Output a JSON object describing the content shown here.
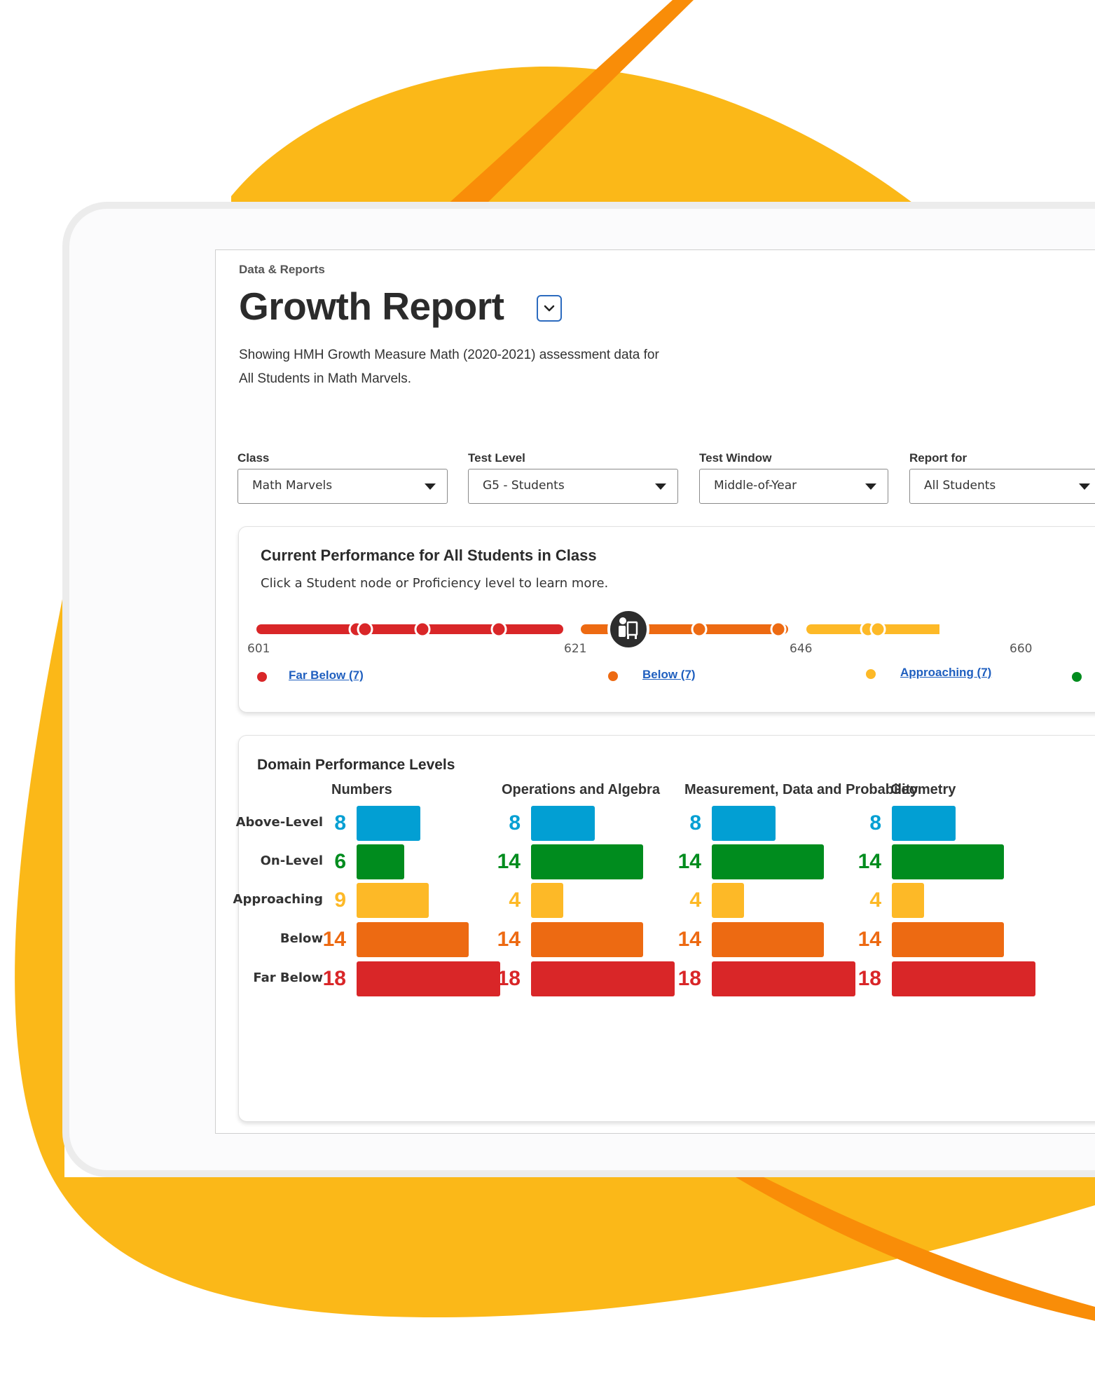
{
  "colors": {
    "background_blob": "#fbb818",
    "accent_stripe": "#f98d08",
    "above_level": "#029fd3",
    "on_level": "#008c1e",
    "approaching": "#fdb927",
    "below": "#ed6a12",
    "far_below": "#d92628",
    "link": "#1f5fbf"
  },
  "header": {
    "breadcrumb": "Data & Reports",
    "title": "Growth Report",
    "title_toggle_icon": "chevron-down-icon",
    "description": "Showing HMH Growth Measure Math (2020-2021) assessment data for All Students in Math Marvels."
  },
  "filters": [
    {
      "label": "Class",
      "value": "Math Marvels"
    },
    {
      "label": "Test Level",
      "value": "G5 - Students"
    },
    {
      "label": "Test Window",
      "value": "Middle-of-Year"
    },
    {
      "label": "Report for",
      "value": "All Students"
    }
  ],
  "performance": {
    "title": "Current Performance for All Students in Class",
    "subtitle": "Click a Student node or Proficiency level to learn more.",
    "class_marker_icon": "class-group-icon",
    "ticks": [
      "601",
      "621",
      "646",
      "660"
    ],
    "levels": [
      {
        "label": "Far Below (7)",
        "color": "#d92628"
      },
      {
        "label": "Below (7)",
        "color": "#ed6a12"
      },
      {
        "label": "Approaching (7)",
        "color": "#fdb927"
      },
      {
        "label": "",
        "color": "#008c1e"
      }
    ]
  },
  "domains": {
    "title": "Domain Performance Levels",
    "row_labels": [
      "Above-Level",
      "On-Level",
      "Approaching",
      "Below",
      "Far Below"
    ],
    "groups": [
      {
        "title": "Numbers",
        "counts": [
          8,
          6,
          9,
          14,
          18
        ]
      },
      {
        "title": "Operations and Algebra",
        "counts": [
          8,
          14,
          4,
          14,
          18
        ]
      },
      {
        "title": "Measurement, Data and Probability",
        "counts": [
          8,
          14,
          4,
          14,
          18
        ]
      },
      {
        "title": "Geometry",
        "counts": [
          8,
          14,
          4,
          14,
          18
        ]
      }
    ]
  }
}
